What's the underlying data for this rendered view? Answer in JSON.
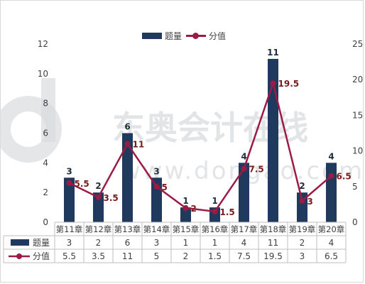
{
  "colors": {
    "bar": "#1f3a5c",
    "line": "#9b1b45",
    "grid": "#d9d9d9",
    "text": "#404040",
    "bar_label": "#1f2d3d",
    "line_label": "#7a1a1a",
    "watermark": "#d9dbde"
  },
  "watermark": {
    "logo_text": "东奥会计在线",
    "url_text": "www.dongao.com"
  },
  "chart_data": {
    "type": "bar",
    "categories": [
      "第11章",
      "第12章",
      "第13章",
      "第14章",
      "第15章",
      "第16章",
      "第17章",
      "第18章",
      "第19章",
      "第20章"
    ],
    "series": [
      {
        "name": "题量",
        "type": "bar",
        "axis": "left",
        "values": [
          3,
          2,
          6,
          3,
          1,
          1,
          4,
          11,
          2,
          4
        ]
      },
      {
        "name": "分值",
        "type": "line",
        "axis": "right",
        "values": [
          5.5,
          3.5,
          11,
          5,
          2,
          1.5,
          7.5,
          19.5,
          3,
          6.5
        ]
      }
    ],
    "y_left": {
      "ylim": [
        0,
        12
      ],
      "ticks": [
        "0",
        "2",
        "4",
        "6",
        "8",
        "10",
        "12"
      ]
    },
    "y_right": {
      "ylim": [
        0,
        25
      ],
      "ticks": [
        "0",
        "5",
        "10",
        "15",
        "20",
        "25"
      ]
    },
    "table_values": [
      [
        "3",
        "2",
        "6",
        "3",
        "1",
        "1",
        "4",
        "11",
        "2",
        "4"
      ],
      [
        "5.5",
        "3.5",
        "11",
        "5",
        "2",
        "1.5",
        "7.5",
        "19.5",
        "3",
        "6.5"
      ]
    ],
    "line_labels": [
      "5.5",
      "3.5",
      "11",
      "5",
      "2",
      "1.5",
      "7.5",
      "19.5",
      "3",
      "6.5"
    ],
    "legend_position": "top-center",
    "grid": false,
    "data_table": true
  }
}
